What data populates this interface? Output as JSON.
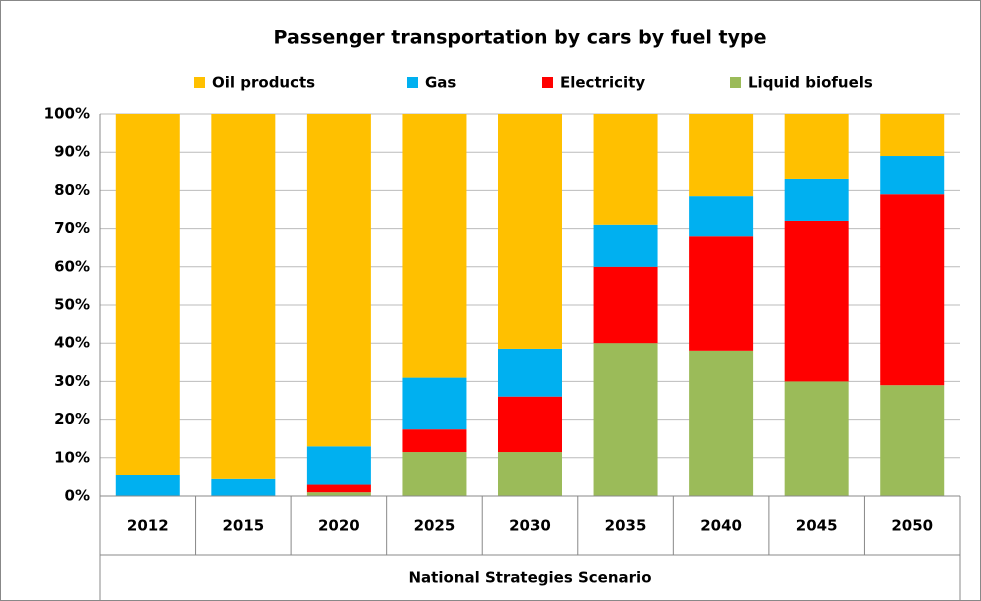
{
  "chart_data": {
    "type": "stacked_bar",
    "title": "Passenger transportation by cars by fuel type",
    "categories": [
      "2012",
      "2015",
      "2020",
      "2025",
      "2030",
      "2035",
      "2040",
      "2045",
      "2050"
    ],
    "group_label": "National Strategies Scenario",
    "series": [
      {
        "name": "Oil products",
        "color": "#FFC000",
        "values": [
          94.5,
          95.5,
          87,
          69,
          61.5,
          29,
          21.5,
          17,
          11
        ]
      },
      {
        "name": "Gas",
        "color": "#00B0F0",
        "values": [
          5.5,
          4.5,
          10,
          13.5,
          12.5,
          11,
          10.5,
          11,
          10
        ]
      },
      {
        "name": "Electricity",
        "color": "#FF0000",
        "values": [
          0,
          0,
          2,
          6,
          14.5,
          20,
          30,
          42,
          50
        ]
      },
      {
        "name": "Liquid biofuels",
        "color": "#9BBB59",
        "values": [
          0,
          0,
          1,
          11.5,
          11.5,
          40,
          38,
          30,
          29
        ]
      }
    ],
    "ylim": [
      0,
      100
    ],
    "yticks": [
      {
        "value": 0,
        "label": "0%"
      },
      {
        "value": 10,
        "label": "10%"
      },
      {
        "value": 20,
        "label": "20%"
      },
      {
        "value": 30,
        "label": "30%"
      },
      {
        "value": 40,
        "label": "40%"
      },
      {
        "value": 50,
        "label": "50%"
      },
      {
        "value": 60,
        "label": "60%"
      },
      {
        "value": 70,
        "label": "70%"
      },
      {
        "value": 80,
        "label": "80%"
      },
      {
        "value": 90,
        "label": "90%"
      },
      {
        "value": 100,
        "label": "100%"
      }
    ],
    "grid": true,
    "legend": "top"
  }
}
